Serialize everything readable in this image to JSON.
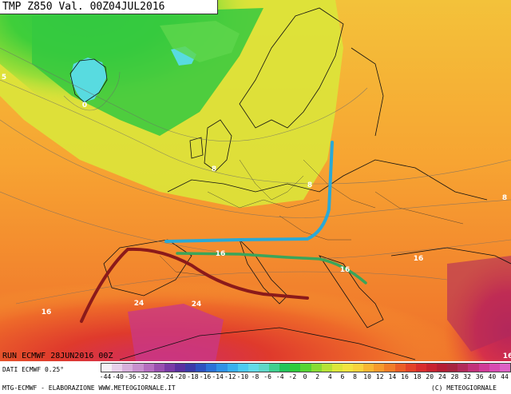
{
  "header": {
    "title": "TMP  Z850  Val. 00Z04JUL2016"
  },
  "footer": {
    "run": "RUN ECMWF  28JUN2016 00Z",
    "data": "DATI ECMWF 0.25°",
    "credits_left": "MTG-ECMWF  -  ELABORAZIONE WWW.METEOGIORNALE.IT",
    "credits_right": "(C) METEOGIORNALE"
  },
  "map": {
    "contour_labels": [
      {
        "id": "c-0-iceland",
        "text": "0"
      },
      {
        "id": "c-5-atlantic",
        "text": "5"
      },
      {
        "id": "c-8-scandinavia",
        "text": "8"
      },
      {
        "id": "c-8-uk",
        "text": "8"
      },
      {
        "id": "c-8-europe",
        "text": "8"
      },
      {
        "id": "c-16-alps",
        "text": "16"
      },
      {
        "id": "c-16-balkans",
        "text": "16"
      },
      {
        "id": "c-16-turkey",
        "text": "16"
      },
      {
        "id": "c-16-east",
        "text": "16"
      },
      {
        "id": "c-16-iberia",
        "text": "16"
      },
      {
        "id": "c-24-spain",
        "text": "24"
      },
      {
        "id": "c-24-africa",
        "text": "24"
      }
    ],
    "fronts": [
      {
        "name": "blue-front",
        "color": "#2aa9d6"
      },
      {
        "name": "green-front",
        "color": "#3aa55a"
      },
      {
        "name": "darkred-front",
        "color": "#8b1a1a"
      }
    ]
  },
  "legend": {
    "colors": [
      "#f6f0f6",
      "#e8d0ea",
      "#d8b0dc",
      "#c890ce",
      "#b66ec0",
      "#9a4fb0",
      "#7a3aa6",
      "#5a2fa0",
      "#3b3aa8",
      "#2d52c0",
      "#2b72d8",
      "#2f92e6",
      "#38b0ee",
      "#4ccbf0",
      "#63dbe8",
      "#5fd7c8",
      "#3fcf8f",
      "#22c45a",
      "#2ecc3c",
      "#55d534",
      "#88dc34",
      "#b6e236",
      "#dce63a",
      "#f2e440",
      "#f8d33c",
      "#f8b632",
      "#f79a2c",
      "#f27d28",
      "#eb5e26",
      "#e44228",
      "#d92d2d",
      "#c8232f",
      "#b51e34",
      "#a8243f",
      "#b22a5a",
      "#c2327a",
      "#d03c98",
      "#d84cb2",
      "#de62c6"
    ],
    "labels": [
      "-44",
      "-40",
      "-36",
      "-32",
      "-28",
      "-24",
      "-20",
      "-18",
      "-16",
      "-14",
      "-12",
      "-10",
      "-8",
      "-6",
      "-4",
      "-2",
      "0",
      "2",
      "4",
      "6",
      "8",
      "10",
      "12",
      "14",
      "16",
      "18",
      "20",
      "24",
      "28",
      "32",
      "36",
      "40",
      "44"
    ]
  }
}
